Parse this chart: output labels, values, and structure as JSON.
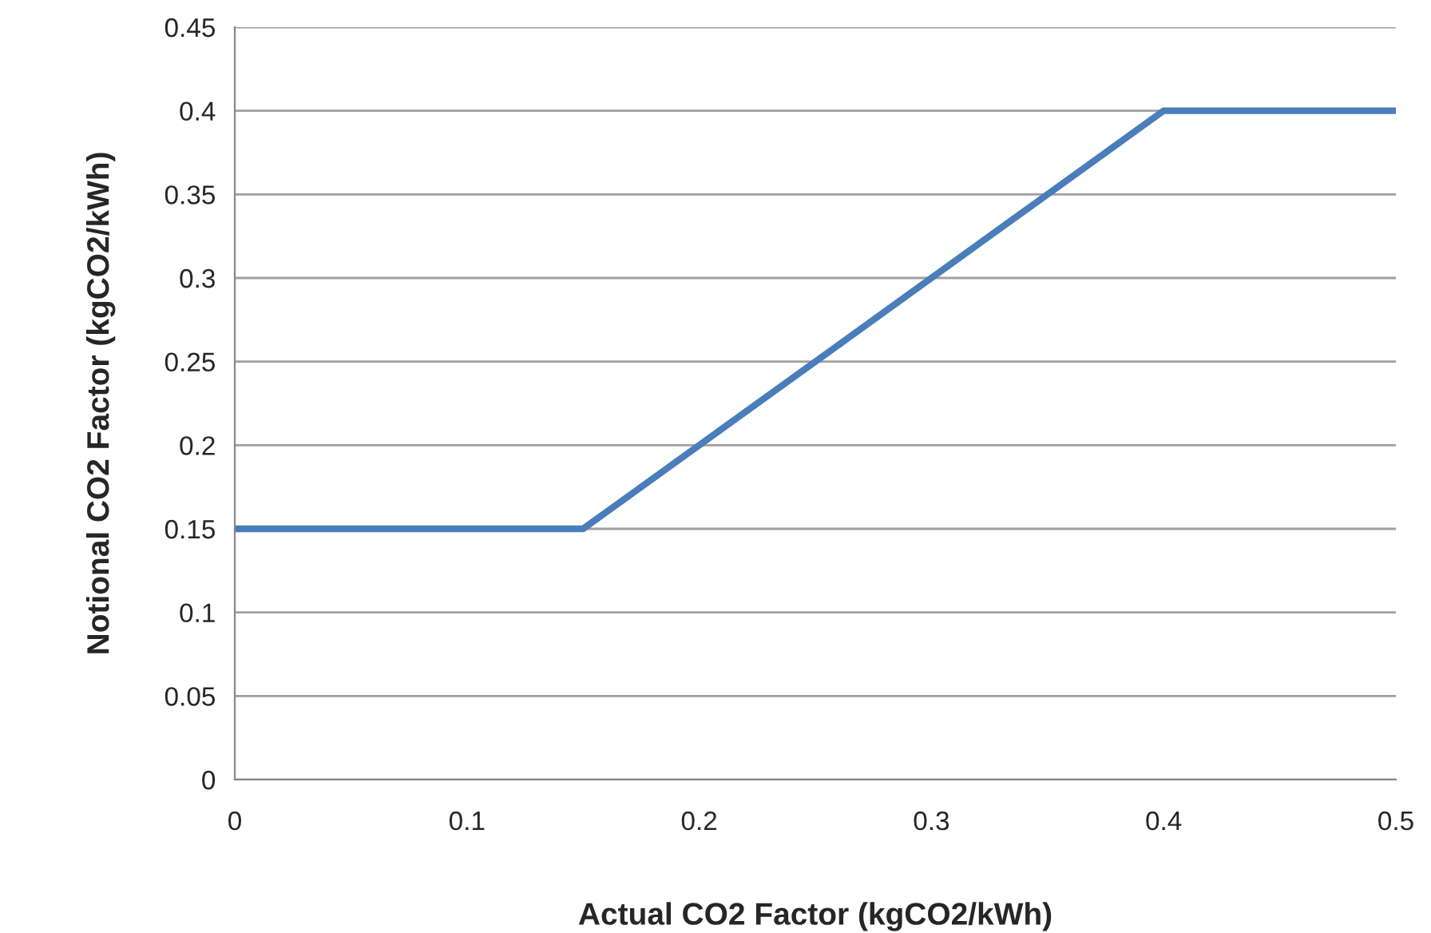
{
  "chart_data": {
    "type": "line",
    "xlabel": "Actual CO2 Factor (kgCO2/kWh)",
    "ylabel": "Notional CO2 Factor (kgCO2/kWh)",
    "x": [
      0,
      0.15,
      0.4,
      0.5
    ],
    "series": [
      {
        "color": "#4a7ebb",
        "values": [
          0.15,
          0.15,
          0.4,
          0.4
        ]
      }
    ],
    "xlim": [
      0,
      0.5
    ],
    "xticks": [
      0,
      0.1,
      0.2,
      0.3,
      0.4,
      0.5
    ],
    "ylim": [
      0,
      0.45
    ],
    "yticks": [
      0,
      0.05,
      0.1,
      0.15,
      0.2,
      0.25,
      0.3,
      0.35,
      0.4,
      0.45
    ],
    "grid": "y",
    "marker": "none",
    "line_style": "solid"
  }
}
